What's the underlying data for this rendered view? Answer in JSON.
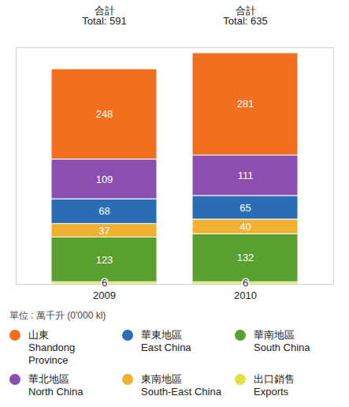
{
  "chart_data": {
    "type": "bar",
    "stacked": true,
    "data_labels": true,
    "tick_labels": "x",
    "legend": "bottom",
    "categories": [
      "2009",
      "2010"
    ],
    "ylim": [
      0,
      650
    ],
    "annotations": {
      "total_heading": "合計",
      "total_labels": [
        "Total: 591",
        "Total: 635"
      ],
      "unit": "單位 : 萬千升 (0'000 kl)"
    },
    "series": [
      {
        "name": "山東 Shandong Province",
        "color": "#f07020",
        "values": [
          248,
          281
        ]
      },
      {
        "name": "華北地區 North China",
        "color": "#8a4fb0",
        "values": [
          109,
          111
        ]
      },
      {
        "name": "華東地區 East China",
        "color": "#2a6db5",
        "values": [
          68,
          65
        ]
      },
      {
        "name": "東南地區 South-East China",
        "color": "#f0b030",
        "values": [
          37,
          40
        ]
      },
      {
        "name": "華南地區 South China",
        "color": "#5aa030",
        "values": [
          123,
          132
        ]
      },
      {
        "name": "出口銷售 Exports",
        "color": "#e0e040",
        "values": [
          6,
          6
        ]
      }
    ]
  }
}
